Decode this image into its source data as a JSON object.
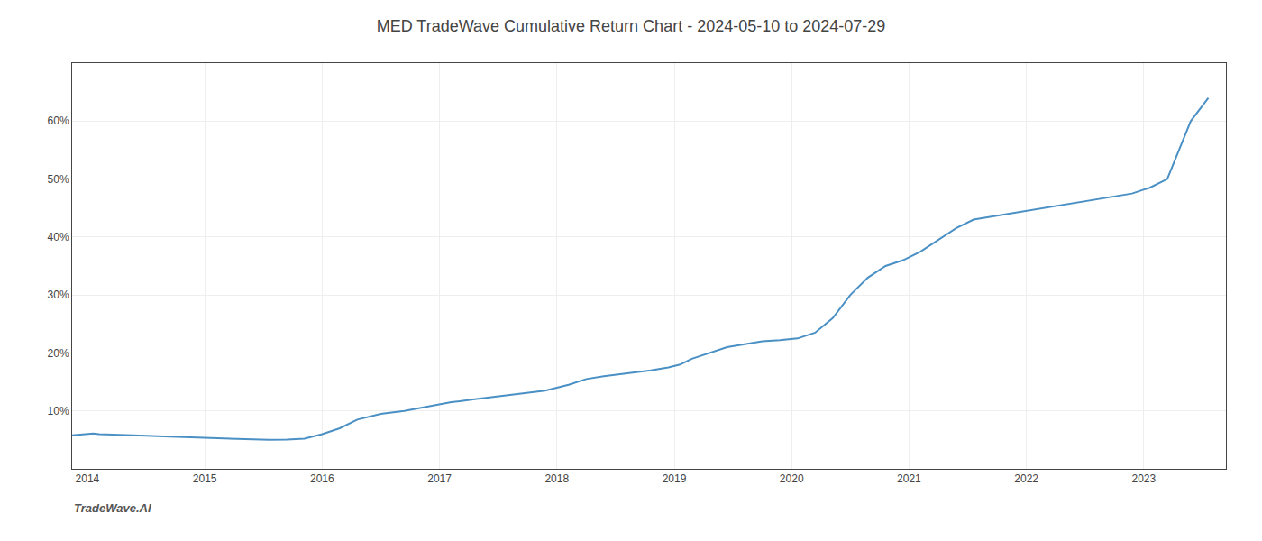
{
  "chart_data": {
    "type": "line",
    "title": "MED TradeWave Cumulative Return Chart - 2024-05-10 to 2024-07-29",
    "annotations": [
      {
        "text": "TradeWave.AI"
      }
    ],
    "color": "#4a90c4",
    "grid": true,
    "x": [
      2013.87,
      2013.92,
      2013.97,
      2014.0,
      2014.05,
      2014.1,
      2014.2,
      2014.35,
      2014.5,
      2014.65,
      2014.8,
      2014.95,
      2015.05,
      2015.15,
      2015.25,
      2015.4,
      2015.55,
      2015.7,
      2015.85,
      2016.0,
      2016.15,
      2016.3,
      2016.5,
      2016.7,
      2016.9,
      2017.1,
      2017.3,
      2017.5,
      2017.7,
      2017.9,
      2018.1,
      2018.25,
      2018.4,
      2018.6,
      2018.8,
      2018.95,
      2019.05,
      2019.15,
      2019.3,
      2019.45,
      2019.6,
      2019.75,
      2019.9,
      2020.05,
      2020.2,
      2020.35,
      2020.5,
      2020.65,
      2020.8,
      2020.95,
      2021.1,
      2021.25,
      2021.4,
      2021.55,
      2021.7,
      2021.85,
      2022.0,
      2022.15,
      2022.3,
      2022.45,
      2022.6,
      2022.75,
      2022.9,
      2023.05,
      2023.2,
      2023.4,
      2023.55
    ],
    "values": [
      5.8,
      5.9,
      6.0,
      6.1,
      6.1,
      6.0,
      5.9,
      5.8,
      5.7,
      5.6,
      5.5,
      5.5,
      5.4,
      5.3,
      5.2,
      5.1,
      5.0,
      5.05,
      5.2,
      6.0,
      7.0,
      8.5,
      9.5,
      10.0,
      10.8,
      11.5,
      12.0,
      12.5,
      13.0,
      13.5,
      14.5,
      15.5,
      16.0,
      16.5,
      17.0,
      17.5,
      18.0,
      19.0,
      20.0,
      21.0,
      21.5,
      22.0,
      22.2,
      22.5,
      23.5,
      26.0,
      30.0,
      33.0,
      35.0,
      36.0,
      37.5,
      39.5,
      41.5,
      43.0,
      43.5,
      44.0,
      44.5,
      45.0,
      45.5,
      46.0,
      46.5,
      47.0,
      47.5,
      48.5,
      50.0,
      60.0,
      64.0
    ],
    "xlim": [
      2013.87,
      2023.7
    ],
    "xticks": [
      2014,
      2015,
      2016,
      2017,
      2018,
      2019,
      2020,
      2021,
      2022,
      2023
    ],
    "ylim": [
      0,
      70
    ],
    "yticks": [
      {
        "value": 10,
        "label": "10%"
      },
      {
        "value": 20,
        "label": "20%"
      },
      {
        "value": 30,
        "label": "30%"
      },
      {
        "value": 40,
        "label": "40%"
      },
      {
        "value": 50,
        "label": "50%"
      },
      {
        "value": 60,
        "label": "60%"
      }
    ]
  }
}
